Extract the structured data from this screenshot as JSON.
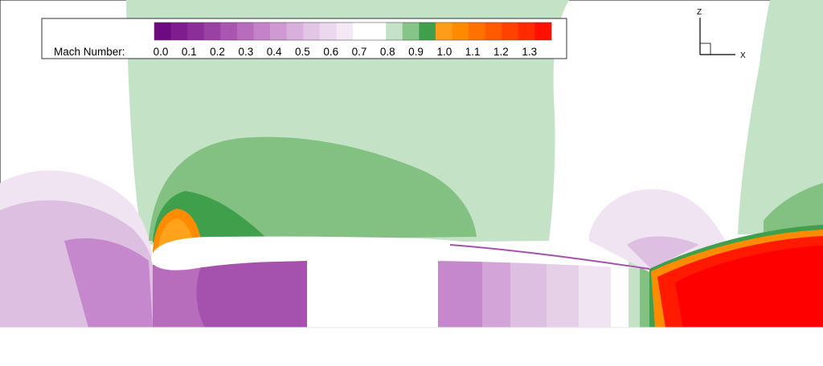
{
  "legend": {
    "title": "Mach Number",
    "separator": ":",
    "tick_labels": [
      "0.0",
      "0.1",
      "0.2",
      "0.3",
      "0.4",
      "0.5",
      "0.6",
      "0.7",
      "0.8",
      "0.9",
      "1.0",
      "1.1",
      "1.2",
      "1.3"
    ],
    "colors": [
      "#6e0a7f",
      "#7e1e8e",
      "#8b2e98",
      "#9a42a4",
      "#a956b0",
      "#b76cbc",
      "#c483c8",
      "#cf99d3",
      "#d9afdd",
      "#e3c5e6",
      "#ebd7ee",
      "#f3e8f4",
      "#ffffff",
      "#ffffff",
      "#c3e2c7",
      "#86c487",
      "#3f9f4a",
      "#ff9d1a",
      "#ff8a00",
      "#ff7200",
      "#ff5a00",
      "#ff4200",
      "#ff2a00",
      "#ff1000"
    ]
  },
  "axes_triad": {
    "z_label": "Z",
    "x_label": "X"
  },
  "colors": {
    "background": "#ffffff",
    "green_light": "#c4e2c6",
    "green_mid": "#82c182",
    "green_dark": "#3f9f4a",
    "purple_pale": "#f0e4f2",
    "purple_light": "#ddbfe1",
    "purple_mid": "#c688cc",
    "purple_dark": "#a452ad",
    "orange": "#ff8c00",
    "orange_light": "#ffa21c",
    "red": "#ff1a00",
    "red_pure": "#ff0000"
  }
}
